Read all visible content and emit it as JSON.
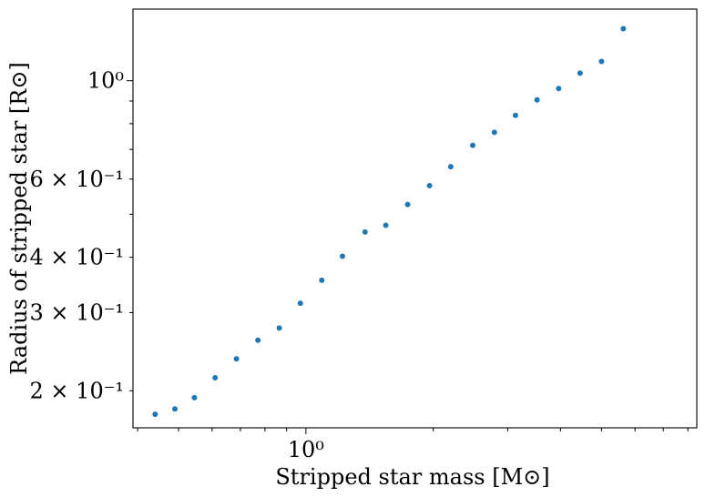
{
  "chart_data": {
    "type": "scatter",
    "title": "",
    "xlabel": "Stripped star mass [M⊙]",
    "ylabel": "Radius of stripped star [R⊙]",
    "x_scale": "log",
    "y_scale": "log",
    "xlim": [
      0.39,
      8.4
    ],
    "ylim": [
      0.165,
      1.45
    ],
    "grid": false,
    "x_tick_labels": [
      {
        "value": 1.0,
        "label": "10⁰"
      }
    ],
    "y_tick_labels": [
      {
        "value": 0.2,
        "label": "2 × 10⁻¹"
      },
      {
        "value": 0.3,
        "label": "3 × 10⁻¹"
      },
      {
        "value": 0.4,
        "label": "4 × 10⁻¹"
      },
      {
        "value": 0.6,
        "label": "6 × 10⁻¹"
      },
      {
        "value": 1.0,
        "label": "10⁰"
      }
    ],
    "marker_color": "#1f77b4",
    "points": [
      {
        "x": 0.44,
        "y": 0.177
      },
      {
        "x": 0.49,
        "y": 0.182
      },
      {
        "x": 0.545,
        "y": 0.193
      },
      {
        "x": 0.61,
        "y": 0.214
      },
      {
        "x": 0.685,
        "y": 0.236
      },
      {
        "x": 0.77,
        "y": 0.26
      },
      {
        "x": 0.865,
        "y": 0.277
      },
      {
        "x": 0.97,
        "y": 0.315
      },
      {
        "x": 1.09,
        "y": 0.355
      },
      {
        "x": 1.22,
        "y": 0.402
      },
      {
        "x": 1.38,
        "y": 0.456
      },
      {
        "x": 1.545,
        "y": 0.472
      },
      {
        "x": 1.74,
        "y": 0.526
      },
      {
        "x": 1.96,
        "y": 0.58
      },
      {
        "x": 2.2,
        "y": 0.64
      },
      {
        "x": 2.48,
        "y": 0.715
      },
      {
        "x": 2.79,
        "y": 0.765
      },
      {
        "x": 3.13,
        "y": 0.835
      },
      {
        "x": 3.52,
        "y": 0.905
      },
      {
        "x": 3.96,
        "y": 0.96
      },
      {
        "x": 4.45,
        "y": 1.04
      },
      {
        "x": 5.0,
        "y": 1.105
      },
      {
        "x": 5.63,
        "y": 1.31
      }
    ]
  }
}
